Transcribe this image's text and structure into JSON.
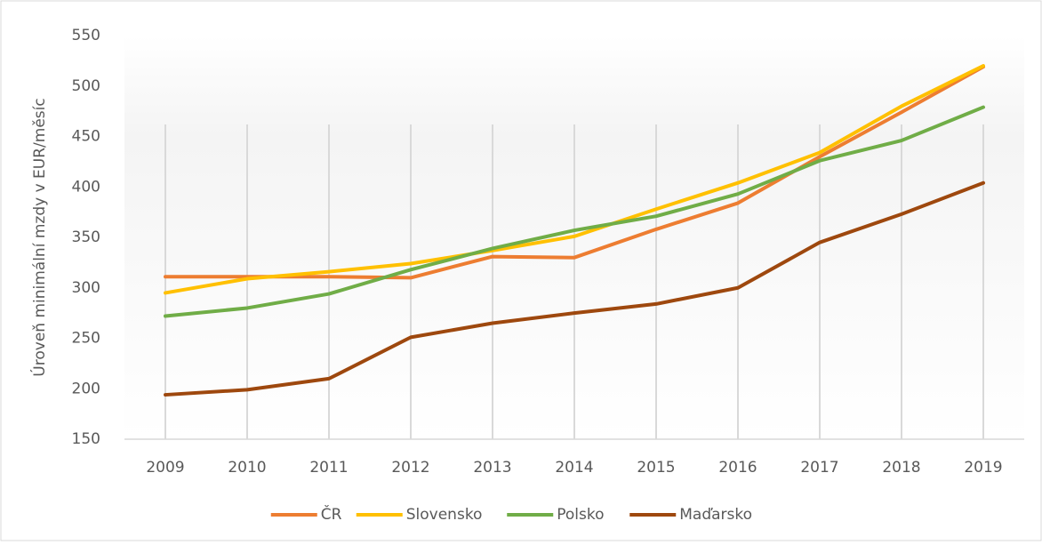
{
  "chart_data": {
    "type": "line",
    "y_label": "Úroveň minimální mzdy v EUR/měsíc",
    "categories": [
      "2009",
      "2010",
      "2011",
      "2012",
      "2013",
      "2014",
      "2015",
      "2016",
      "2017",
      "2018",
      "2019"
    ],
    "series": [
      {
        "name": "ČR",
        "color": "#ed7d31",
        "values": [
          311,
          311,
          311,
          310,
          331,
          330,
          358,
          384,
          430,
          474,
          519
        ]
      },
      {
        "name": "Slovensko",
        "color": "#ffc000",
        "values": [
          295,
          309,
          316,
          324,
          337,
          351,
          378,
          404,
          434,
          480,
          520
        ]
      },
      {
        "name": "Polsko",
        "color": "#70ad47",
        "values": [
          272,
          280,
          294,
          318,
          339,
          357,
          371,
          393,
          426,
          446,
          479
        ]
      },
      {
        "name": "Maďarsko",
        "color": "#9e480e",
        "values": [
          194,
          199,
          210,
          251,
          265,
          275,
          284,
          300,
          345,
          373,
          404
        ]
      }
    ],
    "ylim": [
      150,
      550
    ],
    "yticks": [
      150,
      200,
      250,
      300,
      350,
      400,
      450,
      500,
      550
    ],
    "grid": true,
    "legend": "bottom"
  }
}
